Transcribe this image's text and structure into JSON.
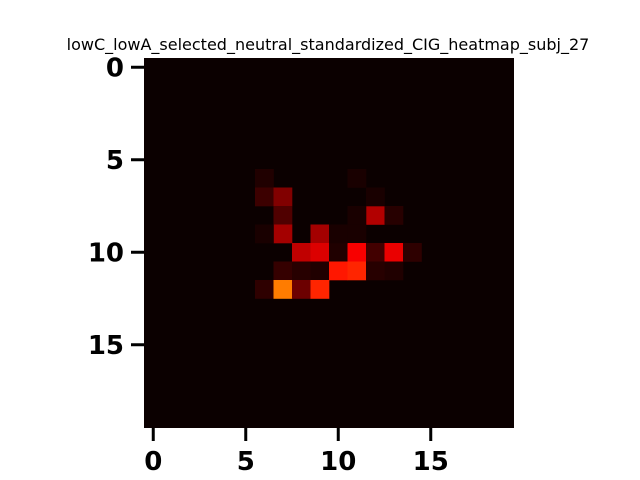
{
  "chart_data": {
    "type": "heatmap",
    "title": "lowC_lowA_selected_neutral_standardized_CIG_heatmap_subj_27",
    "xlabel": "",
    "ylabel": "",
    "rows": 20,
    "cols": 20,
    "xlim": [
      -0.5,
      19.5
    ],
    "ylim": [
      19.5,
      -0.5
    ],
    "x_ticks": [
      0,
      5,
      10,
      15
    ],
    "y_ticks": [
      0,
      5,
      10,
      15
    ],
    "colormap": "hot",
    "background_color": "#0b0000",
    "grid": false,
    "cells": [
      {
        "row": 6,
        "col": 6,
        "value": 0.03
      },
      {
        "row": 7,
        "col": 6,
        "value": 0.07
      },
      {
        "row": 7,
        "col": 7,
        "value": 0.17
      },
      {
        "row": 8,
        "col": 7,
        "value": 0.1
      },
      {
        "row": 8,
        "col": 12,
        "value": 0.24
      },
      {
        "row": 8,
        "col": 13,
        "value": 0.04
      },
      {
        "row": 9,
        "col": 7,
        "value": 0.22
      },
      {
        "row": 9,
        "col": 9,
        "value": 0.22
      },
      {
        "row": 9,
        "col": 6,
        "value": 0.02
      },
      {
        "row": 9,
        "col": 11,
        "value": 0.02
      },
      {
        "row": 10,
        "col": 8,
        "value": 0.26
      },
      {
        "row": 10,
        "col": 9,
        "value": 0.3
      },
      {
        "row": 10,
        "col": 10,
        "value": 0.03
      },
      {
        "row": 10,
        "col": 11,
        "value": 0.34
      },
      {
        "row": 10,
        "col": 12,
        "value": 0.08
      },
      {
        "row": 10,
        "col": 13,
        "value": 0.32
      },
      {
        "row": 10,
        "col": 14,
        "value": 0.05
      },
      {
        "row": 11,
        "col": 7,
        "value": 0.06
      },
      {
        "row": 11,
        "col": 8,
        "value": 0.04
      },
      {
        "row": 11,
        "col": 9,
        "value": 0.03
      },
      {
        "row": 11,
        "col": 10,
        "value": 0.4
      },
      {
        "row": 11,
        "col": 11,
        "value": 0.42
      },
      {
        "row": 11,
        "col": 12,
        "value": 0.04
      },
      {
        "row": 11,
        "col": 13,
        "value": 0.03
      },
      {
        "row": 12,
        "col": 6,
        "value": 0.05
      },
      {
        "row": 12,
        "col": 7,
        "value": 0.55
      },
      {
        "row": 12,
        "col": 8,
        "value": 0.14
      },
      {
        "row": 12,
        "col": 9,
        "value": 0.42
      },
      {
        "row": 6,
        "col": 11,
        "value": 0.02
      },
      {
        "row": 7,
        "col": 12,
        "value": 0.02
      },
      {
        "row": 9,
        "col": 10,
        "value": 0.02
      },
      {
        "row": 8,
        "col": 11,
        "value": 0.02
      }
    ]
  }
}
